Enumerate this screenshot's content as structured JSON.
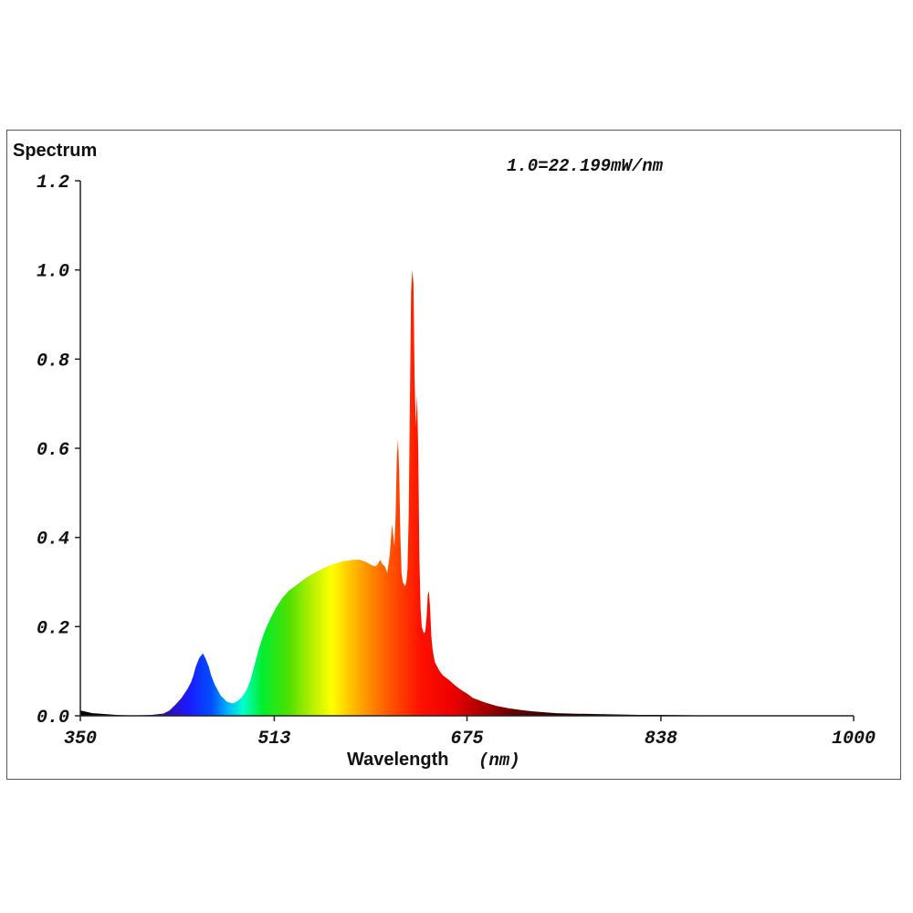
{
  "chart_data": {
    "type": "area",
    "title": "Spectrum",
    "annotation": "1.0=22.199mW/nm",
    "xlabel": "Wavelength",
    "xlabel_unit": "(nm)",
    "ylabel": "",
    "xlim": [
      350,
      1000
    ],
    "ylim": [
      0,
      1.2
    ],
    "xticks": [
      "350",
      "513",
      "675",
      "838",
      "1000"
    ],
    "yticks": [
      "0.0",
      "0.2",
      "0.4",
      "0.6",
      "0.8",
      "1.0",
      "1.2"
    ],
    "grid": false,
    "fill": "visible-spectrum gradient",
    "x": [
      350,
      355,
      360,
      370,
      380,
      390,
      400,
      410,
      420,
      425,
      430,
      435,
      440,
      443,
      445,
      447,
      450,
      453,
      455,
      458,
      460,
      463,
      465,
      468,
      470,
      473,
      475,
      478,
      480,
      483,
      485,
      488,
      490,
      493,
      495,
      500,
      505,
      510,
      515,
      520,
      525,
      530,
      535,
      540,
      545,
      550,
      555,
      560,
      565,
      570,
      575,
      580,
      585,
      590,
      595,
      598,
      600,
      602,
      604,
      606,
      608,
      610,
      612,
      614,
      615,
      616,
      617,
      618,
      619,
      620,
      621,
      622,
      623,
      624,
      625,
      626,
      627,
      628,
      629,
      630,
      631,
      632,
      633,
      634,
      635,
      636,
      637,
      638,
      639,
      640,
      641,
      642,
      643,
      644,
      645,
      646,
      647,
      648,
      650,
      652,
      655,
      660,
      665,
      670,
      675,
      680,
      690,
      700,
      710,
      720,
      730,
      740,
      750,
      760,
      780,
      800,
      820,
      840,
      870,
      900,
      930,
      960,
      1000
    ],
    "y": [
      0.012,
      0.009,
      0.006,
      0.004,
      0.002,
      0.001,
      0.001,
      0.002,
      0.005,
      0.012,
      0.025,
      0.04,
      0.06,
      0.075,
      0.09,
      0.11,
      0.13,
      0.14,
      0.13,
      0.11,
      0.09,
      0.07,
      0.06,
      0.045,
      0.04,
      0.032,
      0.03,
      0.028,
      0.03,
      0.035,
      0.04,
      0.05,
      0.06,
      0.08,
      0.1,
      0.15,
      0.19,
      0.22,
      0.245,
      0.265,
      0.28,
      0.29,
      0.3,
      0.31,
      0.318,
      0.325,
      0.332,
      0.338,
      0.342,
      0.346,
      0.348,
      0.35,
      0.35,
      0.345,
      0.338,
      0.335,
      0.34,
      0.35,
      0.34,
      0.335,
      0.32,
      0.36,
      0.43,
      0.38,
      0.45,
      0.58,
      0.62,
      0.55,
      0.4,
      0.32,
      0.3,
      0.295,
      0.29,
      0.3,
      0.33,
      0.45,
      0.7,
      0.95,
      1.0,
      0.97,
      0.75,
      0.65,
      0.72,
      0.6,
      0.35,
      0.24,
      0.2,
      0.19,
      0.185,
      0.19,
      0.22,
      0.27,
      0.28,
      0.24,
      0.18,
      0.15,
      0.135,
      0.12,
      0.11,
      0.1,
      0.09,
      0.08,
      0.068,
      0.058,
      0.05,
      0.04,
      0.03,
      0.022,
      0.017,
      0.013,
      0.01,
      0.008,
      0.006,
      0.005,
      0.004,
      0.003,
      0.002,
      0.002,
      0.001,
      0.001,
      0.001,
      0.001,
      0.001
    ]
  }
}
